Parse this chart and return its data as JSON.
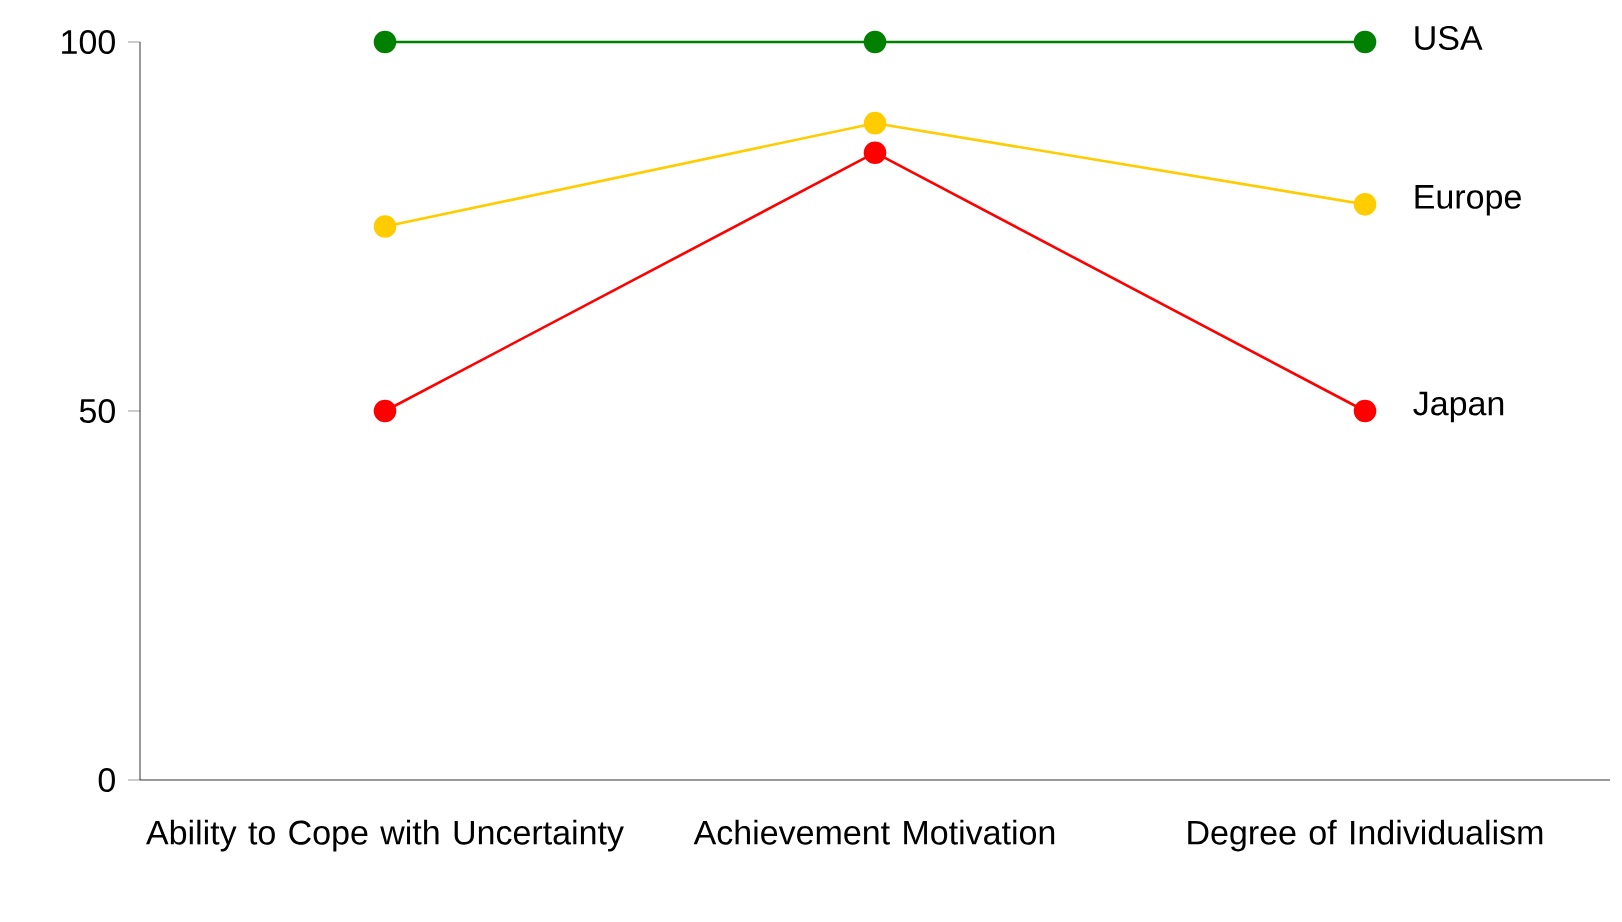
{
  "chart_data": {
    "type": "line",
    "categories": [
      "Ability to Cope with Uncertainty",
      "Achievement Motivation",
      "Degree of Individualism"
    ],
    "series": [
      {
        "name": "USA",
        "color": "#008000",
        "values": [
          100,
          100,
          100
        ]
      },
      {
        "name": "Europe",
        "color": "#ffcc00",
        "values": [
          75,
          89,
          78
        ]
      },
      {
        "name": "Japan",
        "color": "#ff0000",
        "values": [
          50,
          85,
          50
        ]
      }
    ],
    "ylim": [
      0,
      100
    ],
    "yticks": [
      0,
      50,
      100
    ],
    "grid": false,
    "legend": false,
    "marker": "circle",
    "line_style": "solid"
  }
}
